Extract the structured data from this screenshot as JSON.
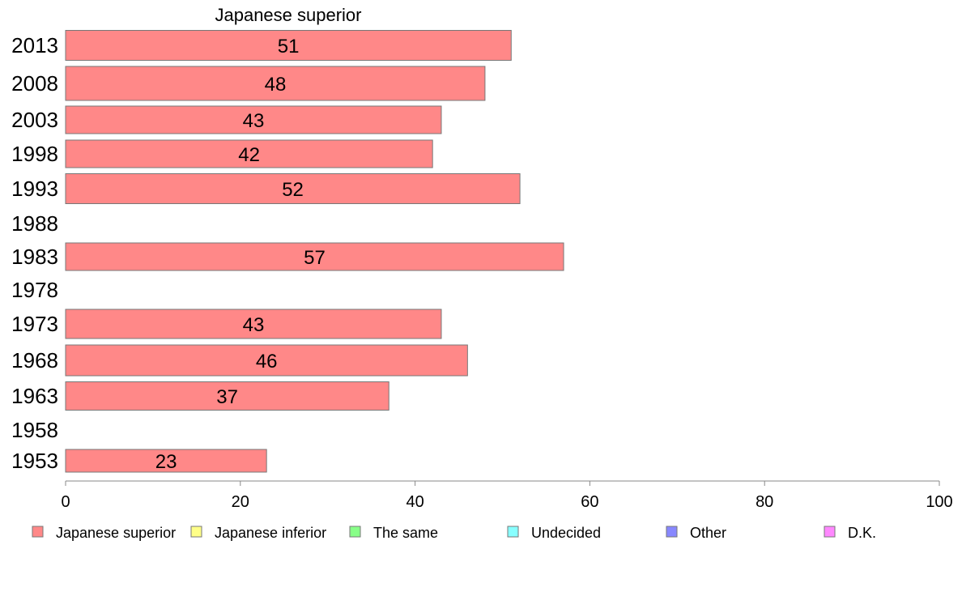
{
  "chart_data": {
    "type": "bar",
    "orientation": "horizontal",
    "title": "Japanese superior",
    "categories": [
      "2013",
      "2008",
      "2003",
      "1998",
      "1993",
      "1988",
      "1983",
      "1978",
      "1973",
      "1968",
      "1963",
      "1958",
      "1953"
    ],
    "series": [
      {
        "name": "Japanese superior",
        "color": "#ff8888",
        "values": [
          51,
          48,
          43,
          42,
          52,
          null,
          57,
          null,
          43,
          46,
          37,
          null,
          23
        ],
        "value_labels": [
          "51",
          "48",
          "43",
          "42",
          "52",
          "",
          "57",
          "",
          "43",
          "46",
          "37",
          "",
          "23"
        ]
      }
    ],
    "xlim": [
      0,
      100
    ],
    "xticks": [
      "0",
      "20",
      "40",
      "60",
      "80",
      "100"
    ],
    "grid": false,
    "legend_position": "bottom",
    "legend": [
      {
        "label": "Japanese superior",
        "color": "#ff8888"
      },
      {
        "label": "Japanese inferior",
        "color": "#ffff88"
      },
      {
        "label": "The same",
        "color": "#88ff88"
      },
      {
        "label": "Undecided",
        "color": "#88ffff"
      },
      {
        "label": "Other",
        "color": "#8888ff"
      },
      {
        "label": "D.K.",
        "color": "#ff88ff"
      }
    ]
  }
}
